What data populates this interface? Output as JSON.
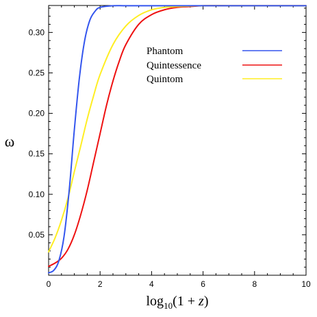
{
  "chart_data": {
    "type": "line",
    "xlabel": "log₁₀(1 + z)",
    "xlabel_parts": {
      "pre": "log",
      "sub": "10",
      "post": "(1 + ",
      "var": "z",
      "close": ")"
    },
    "ylabel": "ω",
    "xlim": [
      0,
      10
    ],
    "ylim": [
      0,
      0.3333
    ],
    "xticks": [
      0,
      2,
      4,
      6,
      8,
      10
    ],
    "yticks": [
      0.05,
      0.1,
      0.15,
      0.2,
      0.25,
      0.3
    ],
    "ytick_labels": [
      "0.05",
      "0.10",
      "0.15",
      "0.20",
      "0.25",
      "0.30"
    ],
    "grid": false,
    "legend_position": "top-right",
    "series": [
      {
        "name": "Phantom",
        "color": "#3355ee",
        "x": [
          0,
          0.2,
          0.4,
          0.6,
          0.8,
          1.0,
          1.2,
          1.4,
          1.6,
          1.8,
          2.0,
          2.5,
          3,
          4,
          5,
          6,
          7,
          8,
          9,
          10
        ],
        "y": [
          0.003,
          0.006,
          0.018,
          0.048,
          0.105,
          0.18,
          0.245,
          0.29,
          0.315,
          0.326,
          0.331,
          0.333,
          0.333,
          0.333,
          0.333,
          0.333,
          0.333,
          0.333,
          0.333,
          0.333
        ]
      },
      {
        "name": "Quintessence",
        "color": "#ee1111",
        "x": [
          0,
          0.25,
          0.5,
          0.75,
          1.0,
          1.25,
          1.5,
          1.75,
          2.0,
          2.25,
          2.5,
          2.75,
          3.0,
          3.5,
          4.0,
          4.5,
          5.0,
          5.5,
          6.0,
          7.0,
          8.0,
          10.0
        ],
        "y": [
          0.011,
          0.015,
          0.021,
          0.032,
          0.05,
          0.075,
          0.105,
          0.14,
          0.175,
          0.21,
          0.24,
          0.265,
          0.285,
          0.31,
          0.322,
          0.328,
          0.331,
          0.332,
          0.333,
          0.333,
          0.333,
          0.333
        ]
      },
      {
        "name": "Quintom",
        "color": "#ffee22",
        "x": [
          0,
          0.25,
          0.5,
          0.75,
          1.0,
          1.25,
          1.5,
          1.75,
          2.0,
          2.5,
          3.0,
          3.5,
          4.0,
          4.5,
          5.0,
          6.0,
          7.0,
          8.0,
          10.0
        ],
        "y": [
          0.029,
          0.046,
          0.068,
          0.095,
          0.128,
          0.16,
          0.193,
          0.222,
          0.248,
          0.285,
          0.308,
          0.321,
          0.328,
          0.331,
          0.332,
          0.333,
          0.333,
          0.333,
          0.333
        ]
      }
    ]
  }
}
